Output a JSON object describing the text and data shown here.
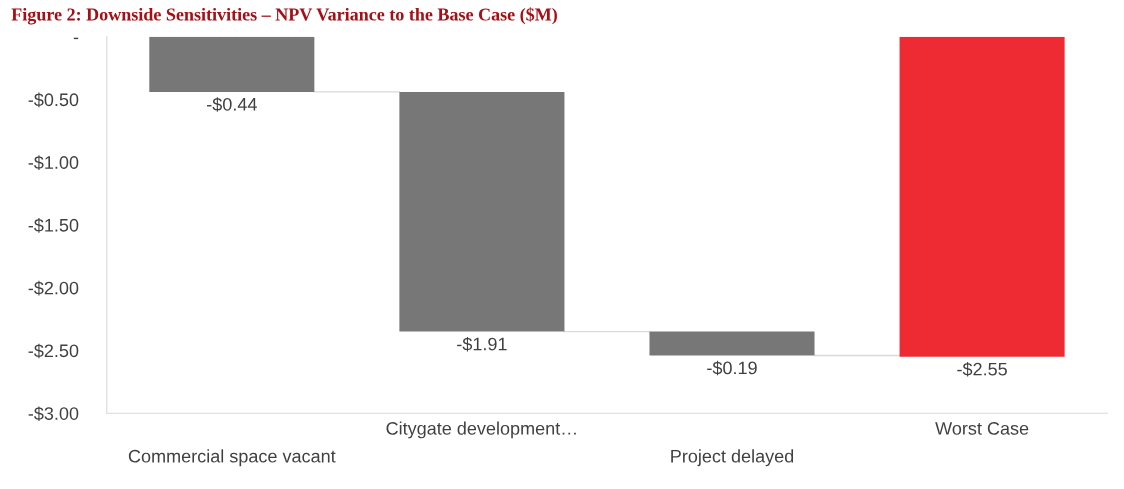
{
  "chart_data": {
    "type": "bar",
    "title": "Figure 2: Downside Sensitivities – NPV Variance to the Base Case ($M)",
    "categories": [
      "Commercial space vacant",
      "Citygate development…",
      "Project delayed",
      "Worst Case"
    ],
    "values": [
      -0.44,
      -1.91,
      -0.19,
      -2.55
    ],
    "base": [
      0,
      -0.44,
      -2.35,
      0
    ],
    "colors": [
      "#777777",
      "#777777",
      "#777777",
      "#ee2b33"
    ],
    "value_labels": [
      "-$0.44",
      "-$1.91",
      "-$0.19",
      "-$2.55"
    ],
    "ylim": [
      -3,
      0
    ],
    "yticks": [
      {
        "value": 0,
        "label": "-"
      },
      {
        "value": -0.5,
        "label": "-$0.50"
      },
      {
        "value": -1,
        "label": "-$1.00"
      },
      {
        "value": -1.5,
        "label": "-$1.50"
      },
      {
        "value": -2,
        "label": "-$2.00"
      },
      {
        "value": -2.5,
        "label": "-$2.50"
      },
      {
        "value": -3,
        "label": "-$3.00"
      }
    ],
    "grid": false,
    "legend": false
  }
}
